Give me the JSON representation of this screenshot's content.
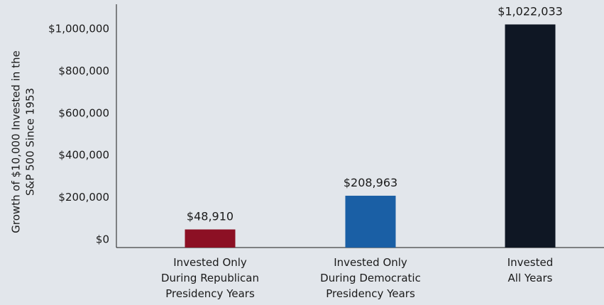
{
  "chart_data": {
    "type": "bar",
    "ylabel_lines": [
      "Growth of $10,000 Invested in the",
      "S&P 500 Since 1953"
    ],
    "ylim": [
      0,
      1100000
    ],
    "yticks": [
      0,
      200000,
      400000,
      600000,
      800000,
      1000000
    ],
    "ytick_labels": [
      "$0",
      "$200,000",
      "$400,000",
      "$600,000",
      "$800,000",
      "$1,000,000"
    ],
    "grid": false,
    "categories": [
      [
        "Invested Only",
        "During Republican",
        "Presidency Years"
      ],
      [
        "Invested Only",
        "During Democratic",
        "Presidency Years"
      ],
      [
        "Invested",
        "All Years"
      ]
    ],
    "values": [
      48910,
      208963,
      1022033
    ],
    "value_labels": [
      "$48,910",
      "$208,963",
      "$1,022,033"
    ],
    "colors": [
      "#8c1024",
      "#1a5fa5",
      "#0f1724"
    ]
  }
}
